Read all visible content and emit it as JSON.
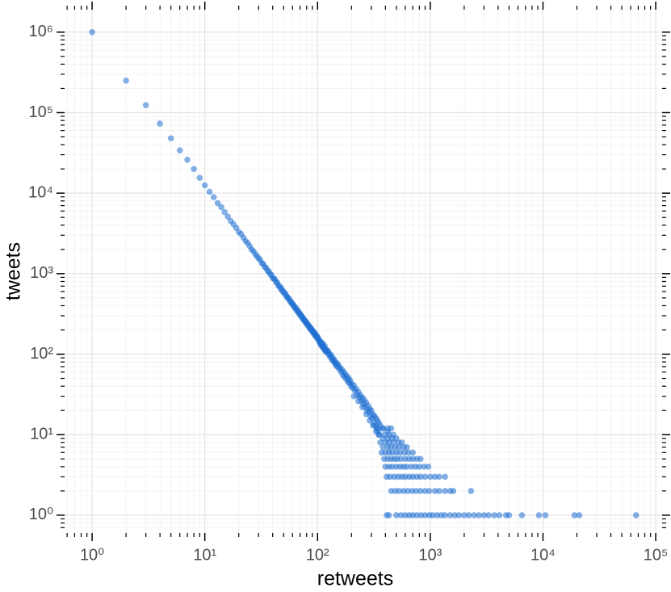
{
  "chart_data": {
    "type": "scatter",
    "x_label": "retweets",
    "y_label": "tweets",
    "log_x": true,
    "log_y": true,
    "grid": true,
    "color": "#1f6fd1",
    "opacity": 0.55,
    "xlim": [
      0.57,
      114000
    ],
    "ylim": [
      0.6,
      1900000
    ],
    "xticks": [
      {
        "value": 1,
        "label": "10⁰"
      },
      {
        "value": 10,
        "label": "10¹"
      },
      {
        "value": 100,
        "label": "10²"
      },
      {
        "value": 1000,
        "label": "10³"
      },
      {
        "value": 10000,
        "label": "10⁴"
      },
      {
        "value": 100000,
        "label": "10⁵"
      }
    ],
    "yticks": [
      {
        "value": 1,
        "label": "10⁰"
      },
      {
        "value": 10,
        "label": "10¹"
      },
      {
        "value": 100,
        "label": "10²"
      },
      {
        "value": 1000,
        "label": "10³"
      },
      {
        "value": 10000,
        "label": "10⁴"
      },
      {
        "value": 100000,
        "label": "10⁵"
      },
      {
        "value": 1000000,
        "label": "10⁶"
      }
    ],
    "xminorticks": [
      0.6,
      0.7,
      0.8,
      0.9,
      2,
      3,
      4,
      5,
      6,
      7,
      8,
      9,
      20,
      30,
      40,
      50,
      60,
      70,
      80,
      90,
      200,
      300,
      400,
      500,
      600,
      700,
      800,
      900,
      2000,
      3000,
      4000,
      5000,
      6000,
      7000,
      8000,
      9000,
      20000,
      30000,
      40000,
      50000,
      60000,
      70000,
      80000,
      90000
    ],
    "yminorticks": [
      0.7,
      0.8,
      0.9,
      2,
      3,
      4,
      5,
      6,
      7,
      8,
      9,
      20,
      30,
      40,
      50,
      60,
      70,
      80,
      90,
      200,
      300,
      400,
      500,
      600,
      700,
      800,
      900,
      2000,
      3000,
      4000,
      5000,
      6000,
      7000,
      8000,
      9000,
      20000,
      30000,
      40000,
      50000,
      60000,
      70000,
      80000,
      90000,
      200000,
      300000,
      400000,
      500000,
      600000,
      700000,
      800000,
      900000
    ],
    "x": [
      1,
      2,
      3,
      4,
      5,
      6,
      7,
      8,
      9,
      10,
      11,
      12,
      13,
      14,
      15,
      16,
      17,
      18,
      19,
      20,
      21,
      22,
      23,
      24,
      25,
      26,
      27,
      28,
      29,
      30,
      31,
      32,
      33,
      34,
      35,
      36,
      37,
      38,
      39,
      40,
      41,
      42,
      43,
      44,
      45,
      46,
      47,
      48,
      49,
      50,
      51,
      52,
      53,
      54,
      55,
      56,
      57,
      58,
      59,
      60,
      61,
      62,
      63,
      64,
      65,
      66,
      67,
      68,
      69,
      70,
      71,
      72,
      73,
      74,
      75,
      76,
      77,
      78,
      79,
      80,
      81,
      82,
      83,
      84,
      85,
      86,
      87,
      88,
      89,
      90,
      91,
      92,
      93,
      94,
      95,
      96,
      97,
      98,
      99,
      100,
      101,
      102,
      103,
      104,
      105,
      106,
      107,
      108,
      109,
      110,
      111,
      112,
      113,
      114,
      115,
      116,
      117,
      118,
      119,
      120,
      122,
      124,
      126,
      128,
      130,
      132,
      134,
      136,
      138,
      140,
      142,
      144,
      146,
      148,
      150,
      153,
      156,
      159,
      162,
      165,
      168,
      171,
      174,
      177,
      180,
      183,
      186,
      189,
      192,
      195,
      198,
      200,
      205,
      210,
      215,
      220,
      225,
      230,
      235,
      240,
      245,
      250,
      255,
      260,
      265,
      270,
      275,
      280,
      285,
      290,
      295,
      300,
      305,
      310,
      315,
      320,
      325,
      330,
      335,
      340,
      345,
      350,
      210,
      230,
      250,
      270,
      290,
      310,
      330,
      350,
      360,
      380,
      420,
      450,
      380,
      420,
      460,
      500,
      350,
      390,
      430,
      470,
      340,
      380,
      420,
      360,
      400,
      430,
      470,
      520,
      560,
      380,
      420,
      450,
      490,
      530,
      580,
      620,
      370,
      400,
      430,
      460,
      500,
      540,
      590,
      640,
      700,
      390,
      420,
      450,
      480,
      510,
      550,
      600,
      650,
      700,
      760,
      820,
      400,
      430,
      460,
      500,
      540,
      580,
      620,
      680,
      740,
      800,
      880,
      960,
      410,
      440,
      480,
      520,
      560,
      600,
      650,
      700,
      760,
      820,
      900,
      1000,
      1100,
      1200,
      1350,
      450,
      490,
      530,
      580,
      630,
      690,
      750,
      820,
      900,
      980,
      1100,
      1200,
      1350,
      1500,
      1600,
      2300,
      410,
      430,
      500,
      550,
      600,
      650,
      700,
      760,
      830,
      900,
      980,
      1050,
      1150,
      1250,
      1350,
      1500,
      1650,
      1800,
      2000,
      2200,
      2450,
      2700,
      3000,
      3300,
      3700,
      4100,
      4700,
      5000,
      6500,
      9200,
      10500,
      19000,
      21000,
      67000
    ],
    "values": [
      1000000,
      250000,
      124000,
      73000,
      48000,
      34000,
      26000,
      20000,
      15500,
      12500,
      10400,
      8900,
      7500,
      6700,
      5800,
      5100,
      4500,
      4100,
      3700,
      3300,
      3100,
      2800,
      2550,
      2400,
      2200,
      2000,
      1900,
      1750,
      1650,
      1550,
      1480,
      1350,
      1320,
      1210,
      1180,
      1090,
      1060,
      990,
      960,
      880,
      870,
      840,
      780,
      770,
      710,
      700,
      650,
      655,
      600,
      600,
      565,
      560,
      520,
      515,
      490,
      485,
      455,
      450,
      425,
      425,
      400,
      398,
      375,
      378,
      352,
      355,
      335,
      336,
      315,
      318,
      300,
      300,
      282,
      285,
      270,
      270,
      256,
      258,
      244,
      246,
      233,
      235,
      222,
      224,
      212,
      215,
      203,
      207,
      195,
      198,
      186,
      190,
      179,
      183,
      172,
      176,
      165,
      170,
      159,
      162,
      160,
      150,
      148,
      141,
      146,
      138,
      131,
      140,
      126,
      132,
      125,
      135,
      118,
      121,
      116,
      125,
      110,
      113,
      108,
      112,
      105,
      110,
      98,
      101,
      92,
      97,
      85,
      90,
      82,
      86,
      78,
      80,
      72,
      77,
      70,
      74,
      65,
      68,
      60,
      64,
      55,
      60,
      52,
      56,
      49,
      53,
      45,
      50,
      44,
      47,
      40,
      43,
      38,
      41,
      35,
      37,
      31,
      34,
      29,
      31,
      26,
      29,
      24,
      27,
      22,
      25,
      20,
      23,
      19,
      21,
      17,
      20,
      16,
      18,
      14,
      17,
      13,
      16,
      12,
      15,
      11,
      14,
      30,
      26,
      22,
      18,
      15,
      13,
      11,
      10,
      13,
      12,
      11,
      12,
      9,
      9,
      9,
      9,
      10,
      10,
      10,
      10,
      12,
      12,
      12,
      8,
      8,
      8,
      8,
      8,
      8,
      7,
      7,
      7,
      7,
      7,
      7,
      7,
      6,
      6,
      6,
      6,
      6,
      6,
      6,
      6,
      6,
      5,
      5,
      5,
      5,
      5,
      5,
      5,
      5,
      5,
      5,
      5,
      4,
      4,
      4,
      4,
      4,
      4,
      4,
      4,
      4,
      4,
      4,
      4,
      3,
      3,
      3,
      3,
      3,
      3,
      3,
      3,
      3,
      3,
      3,
      3,
      3,
      3,
      3,
      2,
      2,
      2,
      2,
      2,
      2,
      2,
      2,
      2,
      2,
      2,
      2,
      2,
      2,
      2,
      2,
      1,
      1,
      1,
      1,
      1,
      1,
      1,
      1,
      1,
      1,
      1,
      1,
      1,
      1,
      1,
      1,
      1,
      1,
      1,
      1,
      1,
      1,
      1,
      1,
      1,
      1,
      1,
      1,
      1,
      1,
      1,
      1,
      1,
      1
    ]
  }
}
